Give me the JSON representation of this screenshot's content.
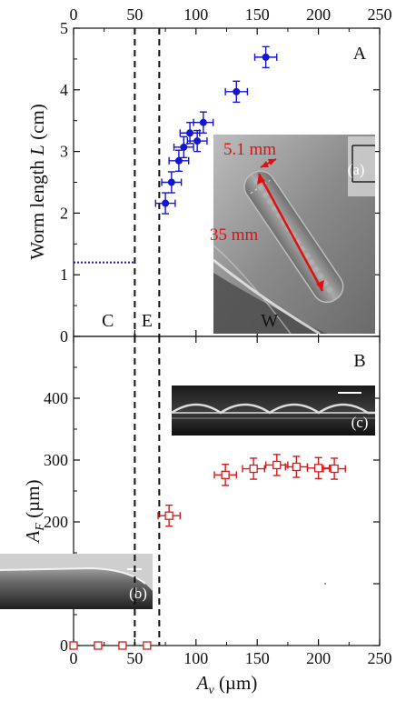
{
  "chart_data": [
    {
      "panel": "A",
      "type": "scatter",
      "panel_label": "A",
      "x_axis_top_ticks": [
        "0",
        "50",
        "100",
        "150",
        "200",
        "250"
      ],
      "xlim": [
        0,
        250
      ],
      "ylim": [
        0,
        5
      ],
      "y_ticks": [
        "0",
        "1",
        "2",
        "3",
        "4",
        "5"
      ],
      "ylabel": "Worm length L (cm)",
      "ylabel_text": "Worm length ",
      "ylabel_var": "L",
      "ylabel_unit": " (cm)",
      "series": [
        {
          "marker": "filled-circle",
          "color": "#1515d0",
          "points": [
            {
              "x": 75,
              "y": 2.16,
              "xerr": 8,
              "yerr": 0.17
            },
            {
              "x": 80,
              "y": 2.5,
              "xerr": 8,
              "yerr": 0.17
            },
            {
              "x": 86,
              "y": 2.85,
              "xerr": 8,
              "yerr": 0.17
            },
            {
              "x": 90,
              "y": 3.07,
              "xerr": 8,
              "yerr": 0.17
            },
            {
              "x": 95,
              "y": 3.3,
              "xerr": 8,
              "yerr": 0.17
            },
            {
              "x": 101,
              "y": 3.17,
              "xerr": 8,
              "yerr": 0.17
            },
            {
              "x": 106,
              "y": 3.47,
              "xerr": 8,
              "yerr": 0.17
            },
            {
              "x": 133,
              "y": 3.97,
              "xerr": 9,
              "yerr": 0.17
            },
            {
              "x": 157,
              "y": 4.53,
              "xerr": 9,
              "yerr": 0.17
            }
          ]
        }
      ],
      "threshold_line": {
        "x_start": 0,
        "x_end": 50,
        "y": 1.2,
        "style": "dotted",
        "color": "#1515d0"
      },
      "vertical_dashed_lines": [
        50,
        70
      ],
      "region_labels": [
        {
          "text": "C",
          "x": 28
        },
        {
          "text": "E",
          "x": 60
        },
        {
          "text": "W",
          "x": 160
        }
      ],
      "inset": {
        "tag": "(a)",
        "width_annotation": "5.1 mm",
        "length_annotation": "35 mm",
        "annotation_color": "#e01010"
      }
    },
    {
      "panel": "B",
      "type": "scatter",
      "panel_label": "B",
      "xlim": [
        0,
        250
      ],
      "x_ticks": [
        "0",
        "50",
        "100",
        "150",
        "200",
        "250"
      ],
      "xlabel": "Av (µm)",
      "xlabel_var": "A",
      "xlabel_sub": "v",
      "xlabel_unit": " (µm)",
      "ylim": [
        0,
        500
      ],
      "y_ticks": [
        "0",
        "100",
        "200",
        "300",
        "400"
      ],
      "ylabel": "AF (µm)",
      "ylabel_var": "A",
      "ylabel_sub": "F",
      "ylabel_unit": " (µm)",
      "series": [
        {
          "marker": "open-square",
          "color": "#d41a1a",
          "points": [
            {
              "x": 0,
              "y": 0
            },
            {
              "x": 20,
              "y": 0
            },
            {
              "x": 40,
              "y": 0
            },
            {
              "x": 60,
              "y": 0
            },
            {
              "x": 78,
              "y": 210,
              "xerr": 9,
              "yerr": 17
            },
            {
              "x": 124,
              "y": 276,
              "xerr": 9,
              "yerr": 17
            },
            {
              "x": 147,
              "y": 286,
              "xerr": 9,
              "yerr": 17
            },
            {
              "x": 166,
              "y": 292,
              "xerr": 9,
              "yerr": 17
            },
            {
              "x": 182,
              "y": 289,
              "xerr": 9,
              "yerr": 17
            },
            {
              "x": 200,
              "y": 287,
              "xerr": 9,
              "yerr": 17
            },
            {
              "x": 213,
              "y": 286,
              "xerr": 9,
              "yerr": 17
            }
          ]
        }
      ],
      "vertical_dashed_lines": [
        50,
        70
      ],
      "insets": [
        {
          "tag": "(b)"
        },
        {
          "tag": "(c)"
        }
      ]
    }
  ],
  "colors": {
    "blue_series": "#1515d0",
    "red_series": "#d41a1a",
    "axis": "#111111"
  }
}
